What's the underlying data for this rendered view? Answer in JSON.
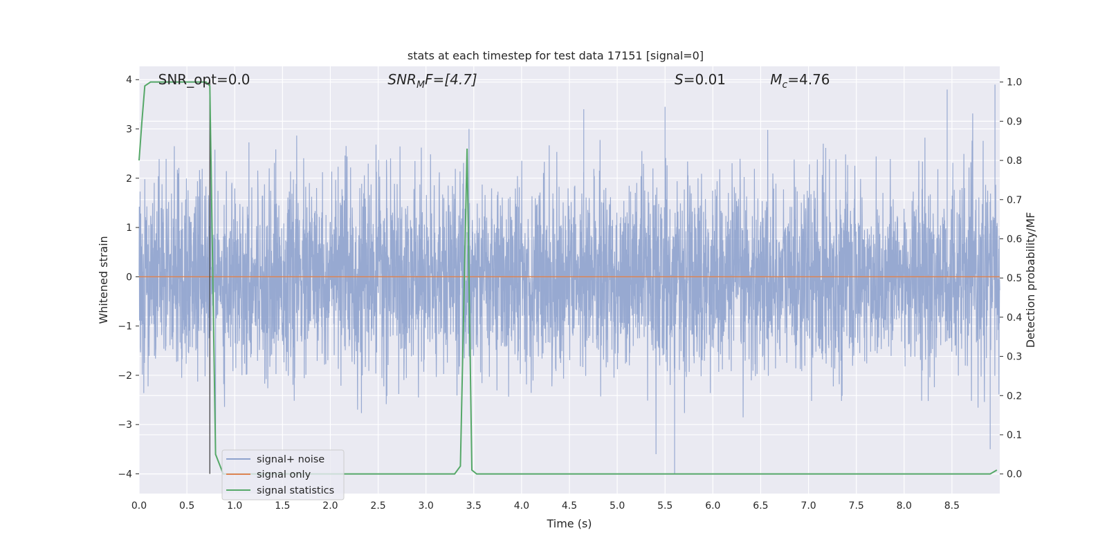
{
  "chart_data": {
    "type": "line",
    "title": "stats at each timestep for test data 17151 [signal=0]",
    "xlabel": "Time (s)",
    "ylabel_left": "Whitened strain",
    "ylabel_right": "Detection probability/MF",
    "xlim": [
      0.0,
      9.0
    ],
    "ylim_left": [
      -4.4,
      4.27
    ],
    "ylim_right": [
      -0.05,
      1.04
    ],
    "x_ticks": [
      0.0,
      0.5,
      1.0,
      1.5,
      2.0,
      2.5,
      3.0,
      3.5,
      4.0,
      4.5,
      5.0,
      5.5,
      6.0,
      6.5,
      7.0,
      7.5,
      8.0,
      8.5
    ],
    "x_tick_labels": [
      "0.0",
      "0.5",
      "1.0",
      "1.5",
      "2.0",
      "2.5",
      "3.0",
      "3.5",
      "4.0",
      "4.5",
      "5.0",
      "5.5",
      "6.0",
      "6.5",
      "7.0",
      "7.5",
      "8.0",
      "8.5"
    ],
    "y_left_ticks": [
      -4,
      -3,
      -2,
      -1,
      0,
      1,
      2,
      3,
      4
    ],
    "y_left_tick_labels": [
      "−4",
      "−3",
      "−2",
      "−1",
      "0",
      "1",
      "2",
      "3",
      "4"
    ],
    "y_right_ticks": [
      0.0,
      0.1,
      0.2,
      0.3,
      0.4,
      0.5,
      0.6,
      0.7,
      0.8,
      0.9,
      1.0
    ],
    "y_right_tick_labels": [
      "0.0",
      "0.1",
      "0.2",
      "0.3",
      "0.4",
      "0.5",
      "0.6",
      "0.7",
      "0.8",
      "0.9",
      "1.0"
    ],
    "grid": true,
    "legend_position": "lower-left",
    "annotations": [
      {
        "text": "SNR_opt=0.0",
        "x": 0.2,
        "y": 4.0
      },
      {
        "text": "SNR",
        "sub": "M",
        "tail": "F=[4.7]",
        "x": 2.6,
        "y": 4.0
      },
      {
        "text": "S",
        "tail": "=0.01",
        "x": 5.6,
        "y": 4.0
      },
      {
        "text": "M",
        "sub": "c",
        "tail": "=4.76",
        "x": 6.6,
        "y": 4.0
      }
    ],
    "series": [
      {
        "name": "signal+ noise",
        "axis": "left",
        "color": "#8ea2cd",
        "kind": "noise",
        "x_range": [
          0.0,
          9.0
        ],
        "typical_amplitude": 1.0,
        "peak_max": 3.9,
        "peak_min": -4.0
      },
      {
        "name": "signal only",
        "axis": "left",
        "color": "#dd8452",
        "x": [
          0.0,
          9.0
        ],
        "y": [
          0.0,
          0.0
        ]
      },
      {
        "name": "signal statistics",
        "axis": "right",
        "color": "#55a868",
        "x": [
          0.0,
          0.03,
          0.06,
          0.12,
          0.3,
          0.5,
          0.7,
          0.74,
          0.8,
          0.88,
          1.0,
          3.3,
          3.36,
          3.43,
          3.48,
          3.53,
          3.6,
          8.9,
          8.97
        ],
        "y": [
          0.8,
          0.9,
          0.99,
          1.0,
          1.0,
          1.0,
          1.0,
          0.99,
          0.05,
          0.0,
          0.0,
          0.0,
          0.02,
          0.83,
          0.01,
          0.0,
          0.0,
          0.0,
          0.01
        ]
      }
    ],
    "marker_line": {
      "x": 0.74,
      "y_from": -4.0,
      "y_to": 4.0,
      "color": "#444444"
    }
  }
}
